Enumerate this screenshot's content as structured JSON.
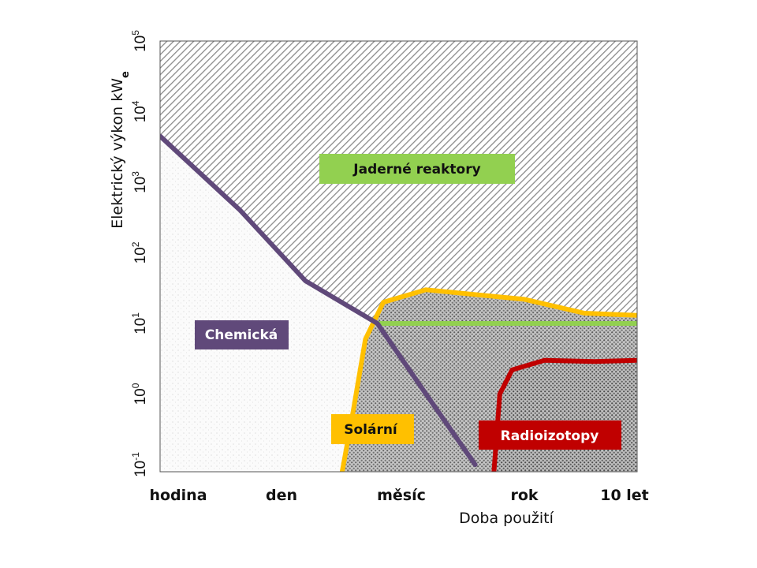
{
  "chart_data": {
    "type": "area",
    "title": "",
    "xlabel": "Doba použití",
    "ylabel": "Elektrický výkon kWe",
    "ylabel_main": "Elektrický výkon kW",
    "ylabel_sub": "e",
    "x_ticks": [
      "hodina",
      "den",
      "měsíc",
      "rok",
      "10 let"
    ],
    "y_scale": "log",
    "y_ticks": [
      {
        "base": "10",
        "exp": "-1"
      },
      {
        "base": "10",
        "exp": "0"
      },
      {
        "base": "10",
        "exp": "1"
      },
      {
        "base": "10",
        "exp": "2"
      },
      {
        "base": "10",
        "exp": "3"
      },
      {
        "base": "10",
        "exp": "4"
      },
      {
        "base": "10",
        "exp": "5"
      }
    ],
    "ylim": [
      0.1,
      100000
    ],
    "grid": false,
    "regions": [
      {
        "name": "Jaderné reaktory",
        "label_color": "#92d050",
        "boundary_color": "#92d050",
        "boundary": [
          [
            1.8,
            10
          ],
          [
            4,
            10
          ]
        ]
      },
      {
        "name": "Chemická",
        "label_color": "#60497a",
        "boundary_color": "#60497a",
        "boundary": [
          [
            0,
            4500
          ],
          [
            0.6,
            400
          ],
          [
            1.2,
            40
          ],
          [
            1.8,
            10
          ],
          [
            2.2,
            1
          ],
          [
            2.6,
            0.1
          ]
        ]
      },
      {
        "name": "Solární",
        "label_color": "#ffc000",
        "boundary_color": "#ffc000",
        "boundary": [
          [
            1.5,
            0.1
          ],
          [
            1.6,
            0.6
          ],
          [
            1.7,
            6
          ],
          [
            1.85,
            20
          ],
          [
            2.2,
            30
          ],
          [
            3.0,
            22
          ],
          [
            3.6,
            14
          ],
          [
            4,
            13
          ]
        ]
      },
      {
        "name": "Radioizotopy",
        "label_color": "#c00000",
        "boundary_color": "#c00000",
        "boundary": [
          [
            2.75,
            0.1
          ],
          [
            2.8,
            1
          ],
          [
            2.9,
            2.2
          ],
          [
            3.2,
            3
          ],
          [
            3.7,
            2.9
          ],
          [
            4,
            3
          ]
        ]
      }
    ]
  }
}
